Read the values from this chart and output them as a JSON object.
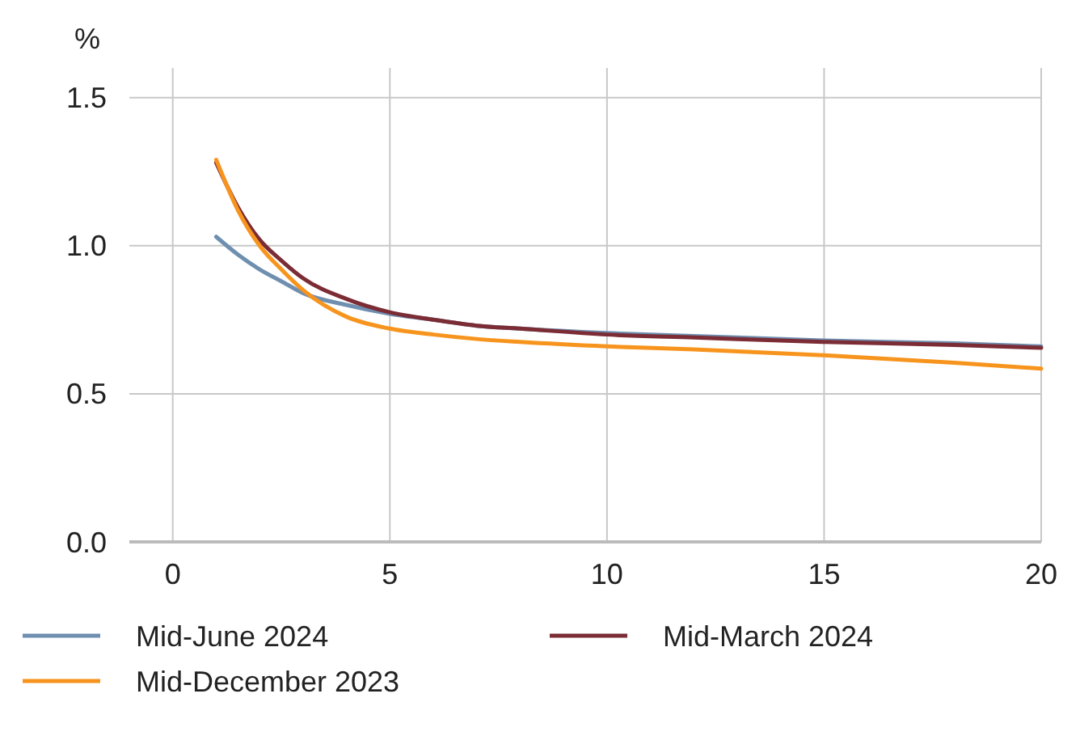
{
  "chart_data": {
    "type": "line",
    "ylabel": "%",
    "x": [
      1,
      1.5,
      2,
      2.5,
      3,
      4,
      5,
      6,
      7,
      8,
      10,
      12,
      15,
      18,
      20
    ],
    "xlim": [
      -1,
      20
    ],
    "ylim": [
      0,
      1.6
    ],
    "xticks": [
      0,
      5,
      10,
      15,
      20
    ],
    "yticks": [
      {
        "value": 0,
        "label": "0.0"
      },
      0.5,
      {
        "value": 1,
        "label": "1.0"
      },
      1.5
    ],
    "grid": true,
    "legend": "bottom",
    "marker": "none",
    "line_style": "solid",
    "series": [
      {
        "name": "Mid-June 2024",
        "color": "#6f8fb0",
        "values": [
          1.03,
          0.97,
          0.92,
          0.88,
          0.84,
          0.8,
          0.77,
          0.75,
          0.73,
          0.72,
          0.705,
          0.695,
          0.68,
          0.67,
          0.66
        ]
      },
      {
        "name": "Mid-March 2024",
        "color": "#7b2c35",
        "values": [
          1.28,
          1.13,
          1.02,
          0.95,
          0.89,
          0.82,
          0.775,
          0.75,
          0.73,
          0.72,
          0.7,
          0.69,
          0.675,
          0.665,
          0.655
        ]
      },
      {
        "name": "Mid-December 2023",
        "color": "#f7941d",
        "values": [
          1.29,
          1.12,
          1.0,
          0.92,
          0.85,
          0.76,
          0.72,
          0.7,
          0.685,
          0.675,
          0.66,
          0.65,
          0.63,
          0.605,
          0.585
        ]
      }
    ]
  }
}
